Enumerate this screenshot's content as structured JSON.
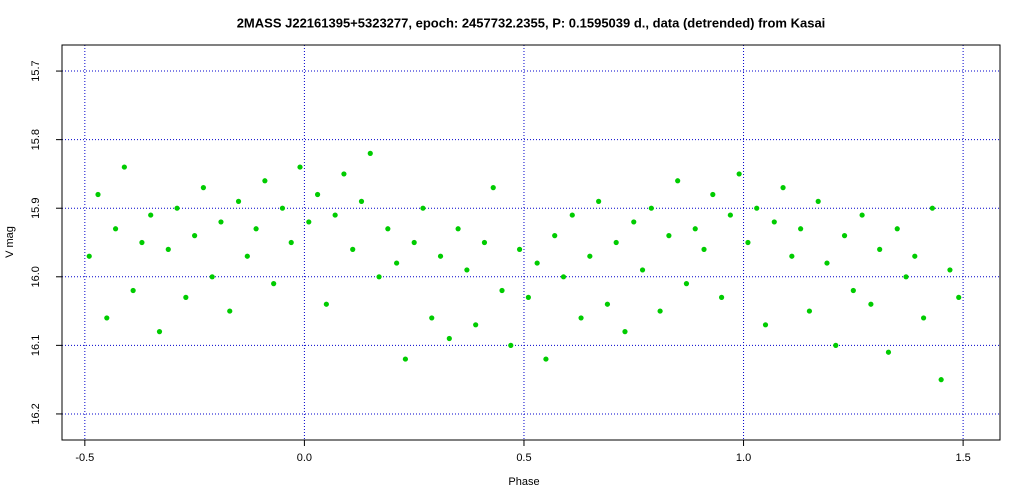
{
  "chart_data": {
    "type": "scatter",
    "title": "2MASS J22161395+5323277, epoch: 2457732.2355, P: 0.1595039 d., data (detrended) from Kasai",
    "x_label": "Phase",
    "y_label": "V mag",
    "xlim": [
      -0.552,
      1.584
    ],
    "ylim": [
      16.238,
      15.662
    ],
    "y_inverted": true,
    "xticks": [
      -0.5,
      {
        "value": 0,
        "label": "0.0"
      },
      0.5,
      {
        "value": 1,
        "label": "1.0"
      },
      1.5
    ],
    "yticks": [
      15.7,
      15.8,
      15.9,
      {
        "value": 16,
        "label": "16.0"
      },
      16.1,
      16.2
    ],
    "grid": true,
    "grid_color": "#0000cc",
    "series": [
      {
        "color": "#00cc00",
        "x": [
          -0.49,
          -0.47,
          -0.45,
          -0.43,
          -0.41,
          -0.39,
          -0.37,
          -0.35,
          -0.33,
          -0.31,
          -0.29,
          -0.27,
          -0.25,
          -0.23,
          -0.21,
          -0.19,
          -0.17,
          -0.15,
          -0.13,
          -0.11,
          -0.09,
          -0.07,
          -0.05,
          -0.03,
          -0.01,
          0.01,
          0.03,
          0.05,
          0.07,
          0.09,
          0.11,
          0.13,
          0.15,
          0.17,
          0.19,
          0.21,
          0.23,
          0.25,
          0.27,
          0.29,
          0.31,
          0.33,
          0.35,
          0.37,
          0.39,
          0.41,
          0.43,
          0.45,
          0.47,
          0.49,
          0.51,
          0.53,
          0.55,
          0.57,
          0.59,
          0.61,
          0.63,
          0.65,
          0.67,
          0.69,
          0.71,
          0.73,
          0.75,
          0.77,
          0.79,
          0.81,
          0.83,
          0.85,
          0.87,
          0.89,
          0.91,
          0.93,
          0.95,
          0.97,
          0.99,
          1.01,
          1.03,
          1.05,
          1.07,
          1.09,
          1.11,
          1.13,
          1.15,
          1.17,
          1.19,
          1.21,
          1.23,
          1.25,
          1.27,
          1.29,
          1.31,
          1.33,
          1.35,
          1.37,
          1.39,
          1.41,
          1.43,
          1.45,
          1.47,
          1.49
        ],
        "values": [
          15.97,
          15.88,
          16.06,
          15.93,
          15.84,
          16.02,
          15.95,
          15.91,
          16.08,
          15.96,
          15.9,
          16.03,
          15.94,
          15.87,
          16.0,
          15.92,
          16.05,
          15.89,
          15.97,
          15.93,
          15.86,
          16.01,
          15.9,
          15.95,
          15.84,
          15.92,
          15.88,
          16.04,
          15.91,
          15.85,
          15.96,
          15.89,
          15.82,
          16.0,
          15.93,
          15.98,
          16.12,
          15.95,
          15.9,
          16.06,
          15.97,
          16.09,
          15.93,
          15.99,
          16.07,
          15.95,
          15.87,
          16.02,
          16.1,
          15.96,
          16.03,
          15.98,
          16.12,
          15.94,
          16.0,
          15.91,
          16.06,
          15.97,
          15.89,
          16.04,
          15.95,
          16.08,
          15.92,
          15.99,
          15.9,
          16.05,
          15.94,
          15.86,
          16.01,
          15.93,
          15.96,
          15.88,
          16.03,
          15.91,
          15.85,
          15.95,
          15.9,
          16.07,
          15.92,
          15.87,
          15.97,
          15.93,
          16.05,
          15.89,
          15.98,
          16.1,
          15.94,
          16.02,
          15.91,
          16.04,
          15.96,
          16.11,
          15.93,
          16.0,
          15.97,
          16.06,
          15.9,
          16.15,
          15.99,
          16.03
        ]
      }
    ]
  }
}
